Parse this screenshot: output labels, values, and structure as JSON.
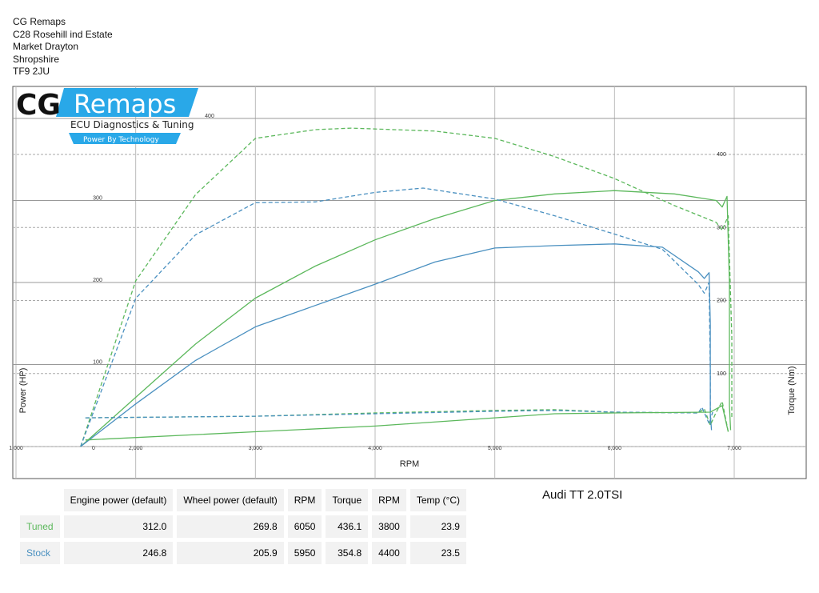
{
  "address": [
    "CG Remaps",
    "C28 Rosehill ind Estate",
    "Market Drayton",
    "Shropshire",
    "TF9 2JU"
  ],
  "logo": {
    "text": "CG Remaps",
    "tagline": "ECU Diagnostics & Tuning",
    "slogan": "Power By Technology",
    "accent": "#29a8e8"
  },
  "vehicle": "Audi TT 2.0TSI",
  "colors": {
    "tuned": "#5cb85c",
    "stock": "#4a90c0"
  },
  "table": {
    "headers": [
      "Engine power (default)",
      "Wheel power (default)",
      "RPM",
      "Torque",
      "RPM",
      "Temp (°C)"
    ],
    "rows": [
      {
        "label": "Tuned",
        "values": [
          "312.0",
          "269.8",
          "6050",
          "436.1",
          "3800",
          "23.9"
        ]
      },
      {
        "label": "Stock",
        "values": [
          "246.8",
          "205.9",
          "5950",
          "354.8",
          "4400",
          "23.5"
        ]
      }
    ]
  },
  "chart_data": {
    "type": "line",
    "xlabel": "RPM",
    "ylabel": "Power (HP)",
    "y2label": "Torque (Nm)",
    "xlim": [
      1000,
      7600
    ],
    "ylim": [
      0,
      400
    ],
    "y2lim": [
      0,
      440
    ],
    "xticks": [
      "1,000",
      "2,000",
      "3,000",
      "4,000",
      "5,000",
      "6,000",
      "7,000"
    ],
    "xtick_values": [
      1000,
      2000,
      3000,
      4000,
      5000,
      6000,
      7000
    ],
    "yticks": [
      "0",
      "100",
      "200",
      "300",
      "400"
    ],
    "ytick_values": [
      0,
      100,
      200,
      300,
      400
    ],
    "y2ticks": [
      "100",
      "200",
      "300",
      "400"
    ],
    "y2tick_values": [
      100,
      200,
      300,
      400
    ],
    "grid": true,
    "series": [
      {
        "id": "tuned-power",
        "color": "tuned",
        "dash": false,
        "axis": "y",
        "points": [
          [
            1540,
            0
          ],
          [
            2000,
            60
          ],
          [
            2500,
            125
          ],
          [
            3000,
            181
          ],
          [
            3500,
            220
          ],
          [
            4000,
            252
          ],
          [
            4500,
            278
          ],
          [
            5000,
            300
          ],
          [
            5500,
            308
          ],
          [
            6000,
            312
          ],
          [
            6500,
            308
          ],
          [
            6850,
            300
          ],
          [
            6900,
            292
          ],
          [
            6940,
            305
          ],
          [
            6960,
            200
          ],
          [
            6960,
            50
          ],
          [
            6970,
            20
          ]
        ]
      },
      {
        "id": "stock-power",
        "color": "stock",
        "dash": false,
        "axis": "y",
        "points": [
          [
            1540,
            0
          ],
          [
            2000,
            52
          ],
          [
            2500,
            105
          ],
          [
            3000,
            146
          ],
          [
            3500,
            172
          ],
          [
            4000,
            198
          ],
          [
            4500,
            225
          ],
          [
            5000,
            242
          ],
          [
            5500,
            245
          ],
          [
            6000,
            247
          ],
          [
            6400,
            243
          ],
          [
            6700,
            213
          ],
          [
            6750,
            205
          ],
          [
            6790,
            212
          ],
          [
            6800,
            150
          ],
          [
            6800,
            40
          ],
          [
            6810,
            20
          ]
        ]
      },
      {
        "id": "tuned-torque",
        "color": "tuned",
        "dash": true,
        "axis": "y2",
        "points": [
          [
            1540,
            0
          ],
          [
            2000,
            227
          ],
          [
            2500,
            345
          ],
          [
            3000,
            422
          ],
          [
            3500,
            434
          ],
          [
            3800,
            436
          ],
          [
            4500,
            432
          ],
          [
            5000,
            422
          ],
          [
            5500,
            397
          ],
          [
            6000,
            367
          ],
          [
            6500,
            330
          ],
          [
            6850,
            307
          ],
          [
            6900,
            296
          ],
          [
            6950,
            316
          ],
          [
            6980,
            150
          ],
          [
            6980,
            40
          ]
        ]
      },
      {
        "id": "stock-torque",
        "color": "stock",
        "dash": true,
        "axis": "y2",
        "points": [
          [
            1540,
            0
          ],
          [
            2000,
            203
          ],
          [
            2500,
            290
          ],
          [
            3000,
            334
          ],
          [
            3500,
            335
          ],
          [
            4000,
            348
          ],
          [
            4400,
            354
          ],
          [
            5000,
            339
          ],
          [
            5500,
            316
          ],
          [
            6000,
            291
          ],
          [
            6400,
            270
          ],
          [
            6700,
            222
          ],
          [
            6750,
            210
          ],
          [
            6790,
            225
          ],
          [
            6800,
            100
          ],
          [
            6800,
            30
          ]
        ]
      },
      {
        "id": "tuned-loss",
        "color": "tuned",
        "dash": true,
        "axis": "y",
        "points": [
          [
            1580,
            35
          ],
          [
            3000,
            37
          ],
          [
            4000,
            41
          ],
          [
            5000,
            44
          ],
          [
            5500,
            45
          ],
          [
            6000,
            42
          ],
          [
            6700,
            41
          ],
          [
            6750,
            46
          ],
          [
            6800,
            26
          ],
          [
            6850,
            42
          ],
          [
            6900,
            55
          ],
          [
            6950,
            18
          ]
        ]
      },
      {
        "id": "stock-loss",
        "color": "stock",
        "dash": true,
        "axis": "y",
        "points": [
          [
            1580,
            35
          ],
          [
            3000,
            37
          ],
          [
            4000,
            40
          ],
          [
            5000,
            43
          ],
          [
            5500,
            44
          ],
          [
            6000,
            42
          ],
          [
            6700,
            41
          ],
          [
            6730,
            48
          ],
          [
            6790,
            28
          ],
          [
            6820,
            42
          ]
        ]
      },
      {
        "id": "tuned-loss-solid",
        "color": "tuned",
        "dash": false,
        "axis": "y",
        "points": [
          [
            1580,
            8
          ],
          [
            3000,
            18
          ],
          [
            4000,
            25
          ],
          [
            5000,
            35
          ],
          [
            5500,
            40
          ],
          [
            6000,
            41
          ],
          [
            6800,
            42
          ],
          [
            6900,
            50
          ],
          [
            6950,
            18
          ]
        ]
      }
    ]
  }
}
